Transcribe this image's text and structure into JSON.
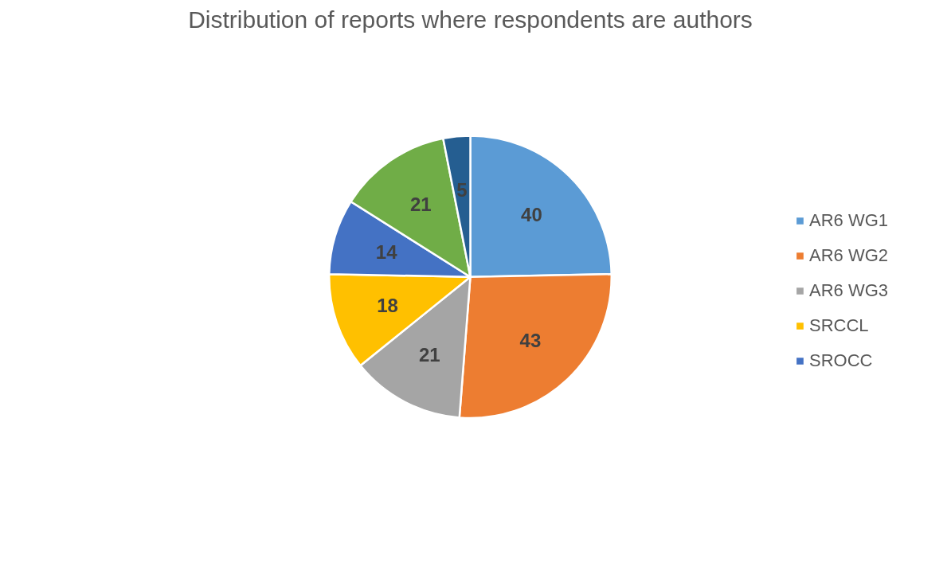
{
  "chart_data": {
    "type": "pie",
    "title": "Distribution of reports where respondents are authors",
    "categories": [
      "AR6 WG1",
      "AR6 WG2",
      "AR6 WG3",
      "SRCCL",
      "SROCC",
      null,
      null
    ],
    "values": [
      40,
      43,
      21,
      18,
      14,
      21,
      5
    ],
    "colors": [
      "#5b9bd5",
      "#ed7d31",
      "#a5a5a5",
      "#ffc000",
      "#4472c4",
      "#70ad47",
      "#255e91"
    ],
    "data_labels": true,
    "legend": "right"
  }
}
